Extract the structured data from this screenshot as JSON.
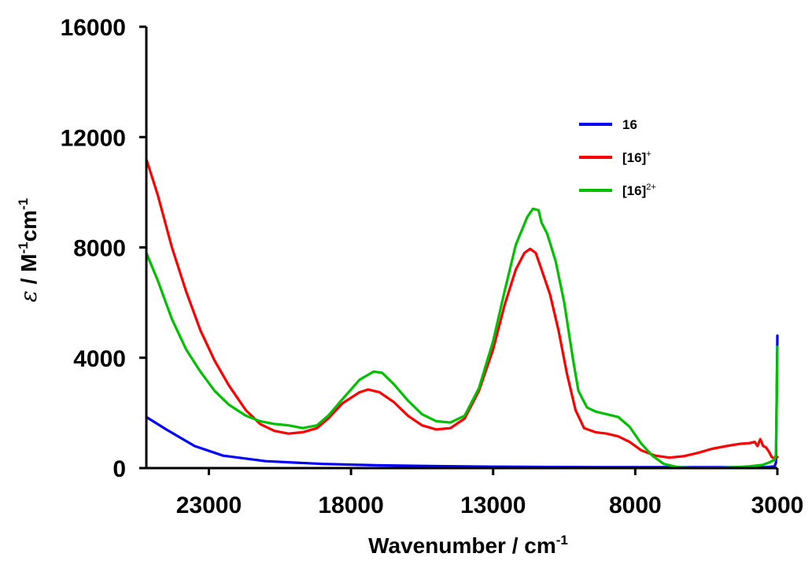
{
  "chart_data": {
    "type": "line",
    "xlabel": "Wavenumber / cm",
    "xlabel_sup": "-1",
    "ylabel_parts": [
      "ε",
      " / M",
      "-1",
      "cm",
      "-1"
    ],
    "xlim": [
      25200,
      3000
    ],
    "ylim": [
      0,
      16000
    ],
    "x_reversed": true,
    "x_ticks": [
      23000,
      18000,
      13000,
      8000,
      3000
    ],
    "y_ticks": [
      0,
      4000,
      8000,
      12000,
      16000
    ],
    "grid": false,
    "legend_position": "top-right",
    "series": [
      {
        "name": "16",
        "name_sup": "",
        "color": "#0000ff",
        "points": [
          [
            25200,
            1850
          ],
          [
            24500,
            1400
          ],
          [
            23500,
            800
          ],
          [
            22500,
            450
          ],
          [
            21000,
            250
          ],
          [
            19000,
            150
          ],
          [
            17000,
            100
          ],
          [
            15000,
            70
          ],
          [
            13000,
            50
          ],
          [
            11000,
            40
          ],
          [
            9000,
            30
          ],
          [
            7000,
            30
          ],
          [
            5000,
            30
          ],
          [
            3800,
            30
          ],
          [
            3400,
            30
          ],
          [
            3100,
            60
          ],
          [
            3050,
            200
          ],
          [
            3000,
            4800
          ]
        ]
      },
      {
        "name": "[16]",
        "name_sup": "+",
        "color": "#ff0000",
        "points": [
          [
            25200,
            11200
          ],
          [
            24800,
            9900
          ],
          [
            24300,
            8000
          ],
          [
            23800,
            6400
          ],
          [
            23300,
            5000
          ],
          [
            22800,
            3900
          ],
          [
            22300,
            3000
          ],
          [
            21700,
            2100
          ],
          [
            21200,
            1600
          ],
          [
            20700,
            1350
          ],
          [
            20200,
            1250
          ],
          [
            19700,
            1300
          ],
          [
            19200,
            1450
          ],
          [
            18800,
            1800
          ],
          [
            18300,
            2350
          ],
          [
            17700,
            2750
          ],
          [
            17400,
            2850
          ],
          [
            17000,
            2750
          ],
          [
            16500,
            2400
          ],
          [
            16000,
            1900
          ],
          [
            15500,
            1550
          ],
          [
            15000,
            1400
          ],
          [
            14500,
            1450
          ],
          [
            14000,
            1800
          ],
          [
            13500,
            2800
          ],
          [
            13000,
            4300
          ],
          [
            12600,
            5900
          ],
          [
            12200,
            7200
          ],
          [
            11900,
            7800
          ],
          [
            11700,
            7950
          ],
          [
            11500,
            7800
          ],
          [
            11300,
            7200
          ],
          [
            11000,
            6300
          ],
          [
            10700,
            5000
          ],
          [
            10400,
            3400
          ],
          [
            10100,
            2100
          ],
          [
            9800,
            1450
          ],
          [
            9400,
            1300
          ],
          [
            9000,
            1250
          ],
          [
            8600,
            1150
          ],
          [
            8200,
            950
          ],
          [
            7800,
            650
          ],
          [
            7300,
            450
          ],
          [
            6800,
            380
          ],
          [
            6300,
            430
          ],
          [
            5800,
            550
          ],
          [
            5300,
            700
          ],
          [
            4800,
            800
          ],
          [
            4300,
            880
          ],
          [
            4000,
            900
          ],
          [
            3800,
            950
          ],
          [
            3700,
            800
          ],
          [
            3600,
            1050
          ],
          [
            3500,
            800
          ],
          [
            3400,
            750
          ],
          [
            3300,
            600
          ],
          [
            3200,
            400
          ],
          [
            3100,
            350
          ],
          [
            3000,
            400
          ]
        ]
      },
      {
        "name": "[16]",
        "name_sup": "2+",
        "color": "#00c000",
        "points": [
          [
            25200,
            7800
          ],
          [
            24800,
            6800
          ],
          [
            24300,
            5400
          ],
          [
            23800,
            4300
          ],
          [
            23300,
            3500
          ],
          [
            22800,
            2800
          ],
          [
            22300,
            2300
          ],
          [
            21700,
            1900
          ],
          [
            21200,
            1700
          ],
          [
            20700,
            1600
          ],
          [
            20200,
            1550
          ],
          [
            19700,
            1450
          ],
          [
            19200,
            1550
          ],
          [
            18800,
            1900
          ],
          [
            18300,
            2500
          ],
          [
            17700,
            3200
          ],
          [
            17200,
            3500
          ],
          [
            16900,
            3450
          ],
          [
            16500,
            3050
          ],
          [
            16000,
            2450
          ],
          [
            15500,
            1950
          ],
          [
            15000,
            1700
          ],
          [
            14500,
            1650
          ],
          [
            14000,
            1900
          ],
          [
            13500,
            2900
          ],
          [
            13000,
            4600
          ],
          [
            12600,
            6400
          ],
          [
            12200,
            8100
          ],
          [
            11800,
            9100
          ],
          [
            11600,
            9400
          ],
          [
            11400,
            9350
          ],
          [
            11300,
            8900
          ],
          [
            11100,
            8500
          ],
          [
            10800,
            7500
          ],
          [
            10500,
            6000
          ],
          [
            10200,
            4000
          ],
          [
            10000,
            2800
          ],
          [
            9700,
            2200
          ],
          [
            9400,
            2050
          ],
          [
            9000,
            1950
          ],
          [
            8600,
            1850
          ],
          [
            8200,
            1500
          ],
          [
            7800,
            900
          ],
          [
            7400,
            450
          ],
          [
            7000,
            150
          ],
          [
            6500,
            30
          ],
          [
            6000,
            10
          ],
          [
            5000,
            10
          ],
          [
            4500,
            30
          ],
          [
            4000,
            60
          ],
          [
            3500,
            120
          ],
          [
            3300,
            200
          ],
          [
            3100,
            300
          ],
          [
            3050,
            500
          ],
          [
            3000,
            4400
          ]
        ]
      }
    ]
  }
}
